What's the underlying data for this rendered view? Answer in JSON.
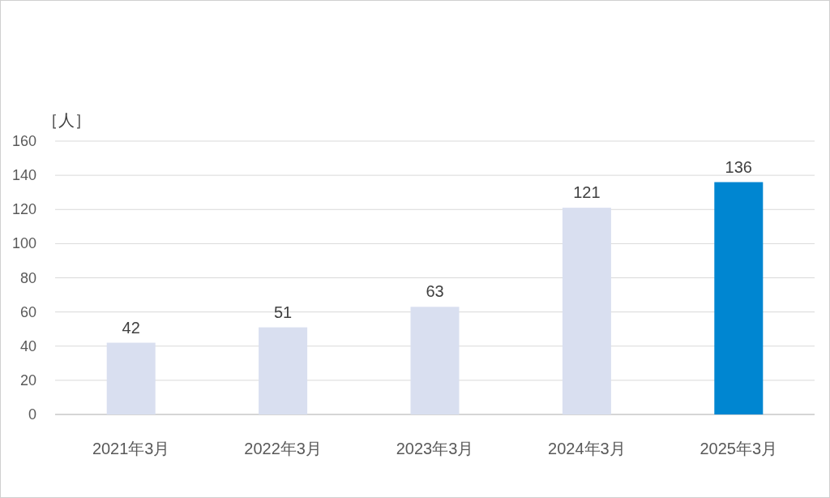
{
  "chart_data": {
    "type": "bar",
    "ylabel": "［人］",
    "categories": [
      "2021年3月",
      "2022年3月",
      "2023年3月",
      "2024年3月",
      "2025年3月"
    ],
    "values": [
      42,
      51,
      63,
      121,
      136
    ],
    "colors": [
      "#d9dff0",
      "#d9dff0",
      "#d9dff0",
      "#d9dff0",
      "#0086d1"
    ],
    "ylim": [
      0,
      160
    ],
    "yticks": [
      0,
      20,
      40,
      60,
      80,
      100,
      120,
      140,
      160
    ],
    "grid": "y",
    "data_labels": true
  }
}
